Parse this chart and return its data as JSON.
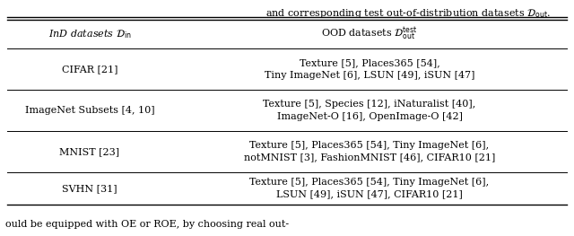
{
  "col_headers": [
    "InD datasets $\\mathcal{D}_{\\mathrm{in}}$",
    "OOD datasets $\\mathcal{D}_{\\mathrm{out}}^{\\mathrm{test}}$"
  ],
  "rows": [
    [
      "CIFAR [21]",
      "Texture [5], Places365 [54],\nTiny ImageNet [6], LSUN [49], iSUN [47]"
    ],
    [
      "ImageNet Subsets [4, 10]",
      "Texture [5], Species [12], iNaturalist [40],\nImageNet-O [16], OpenImage-O [42]"
    ],
    [
      "MNIST [23]",
      "Texture [5], Places365 [54], Tiny ImageNet [6],\nnotMNIST [3], FashionMNIST [46], CIFAR10 [21]"
    ],
    [
      "SVHN [31]",
      "Texture [5], Places365 [54], Tiny ImageNet [6],\nLSUN [49], iSUN [47], CIFAR10 [21]"
    ]
  ],
  "col_split": 0.295,
  "background_color": "#ffffff",
  "text_color": "#000000",
  "line_color": "#000000",
  "font_size": 8.0,
  "top_text": "and corresponding test out-of-distribution datasets $\\mathcal{D}_{\\mathrm{out}}$.",
  "bottom_text": "ould be equipped with OE or ROE, by choosing real out-"
}
